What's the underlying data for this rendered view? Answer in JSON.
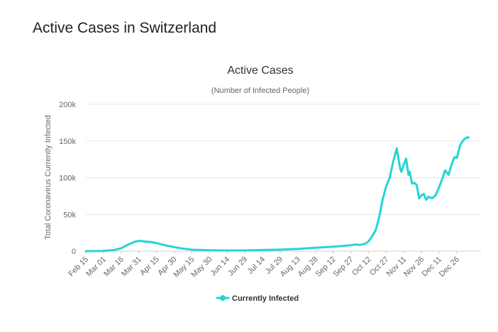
{
  "page": {
    "title": "Active Cases in Switzerland"
  },
  "colors": {
    "series": "#23d5d5",
    "grid": "#e6e6e6",
    "axis_text": "#666666",
    "title_text": "#333333"
  },
  "chart_data": {
    "type": "line",
    "title": "Active Cases",
    "subtitle": "(Number of Infected People)",
    "xlabel": "",
    "ylabel": "Total Coronavirus Currently Infected",
    "x_categories": [
      "Feb 15",
      "Mar 01",
      "Mar 16",
      "Mar 31",
      "Apr 15",
      "Apr 30",
      "May 15",
      "May 30",
      "Jun 14",
      "Jun 29",
      "Jul 14",
      "Jul 29",
      "Aug 13",
      "Aug 28",
      "Sep 12",
      "Sep 27",
      "Oct 12",
      "Oct 27",
      "Nov 11",
      "Nov 26",
      "Dec 11",
      "Dec 26"
    ],
    "y_ticks": [
      "0",
      "50k",
      "100k",
      "150k",
      "200k"
    ],
    "ylim": [
      0,
      200000
    ],
    "grid": true,
    "legend_position": "bottom-center",
    "series": [
      {
        "name": "Currently Infected",
        "x": [
          "2020-02-15",
          "2020-03-01",
          "2020-03-10",
          "2020-03-16",
          "2020-03-22",
          "2020-03-28",
          "2020-04-01",
          "2020-04-05",
          "2020-04-10",
          "2020-04-15",
          "2020-04-22",
          "2020-04-30",
          "2020-05-07",
          "2020-05-15",
          "2020-05-30",
          "2020-06-14",
          "2020-06-29",
          "2020-07-14",
          "2020-07-29",
          "2020-08-13",
          "2020-08-28",
          "2020-09-12",
          "2020-09-20",
          "2020-09-27",
          "2020-10-01",
          "2020-10-05",
          "2020-10-09",
          "2020-10-12",
          "2020-10-15",
          "2020-10-18",
          "2020-10-21",
          "2020-10-24",
          "2020-10-27",
          "2020-10-30",
          "2020-11-02",
          "2020-11-05",
          "2020-11-08",
          "2020-11-09",
          "2020-11-11",
          "2020-11-13",
          "2020-11-15",
          "2020-11-16",
          "2020-11-18",
          "2020-11-20",
          "2020-11-22",
          "2020-11-24",
          "2020-11-26",
          "2020-11-28",
          "2020-11-30",
          "2020-12-02",
          "2020-12-05",
          "2020-12-08",
          "2020-12-11",
          "2020-12-14",
          "2020-12-16",
          "2020-12-19",
          "2020-12-22",
          "2020-12-24",
          "2020-12-26",
          "2020-12-29",
          "2021-01-01",
          "2021-01-04",
          "2021-01-05"
        ],
        "values": [
          0,
          200,
          1500,
          4000,
          9000,
          13000,
          14000,
          13000,
          12500,
          11000,
          8000,
          5500,
          3500,
          2000,
          1200,
          900,
          1000,
          1500,
          2000,
          3000,
          4500,
          6000,
          7000,
          8000,
          9000,
          8500,
          10000,
          13000,
          20000,
          28000,
          45000,
          70000,
          88000,
          100000,
          122000,
          140000,
          112000,
          108000,
          118000,
          126000,
          104000,
          108000,
          92000,
          93000,
          90000,
          72000,
          76000,
          78000,
          70000,
          74000,
          72000,
          76000,
          87000,
          100000,
          110000,
          104000,
          120000,
          128000,
          127000,
          145000,
          152000,
          155000,
          155000
        ]
      }
    ]
  }
}
